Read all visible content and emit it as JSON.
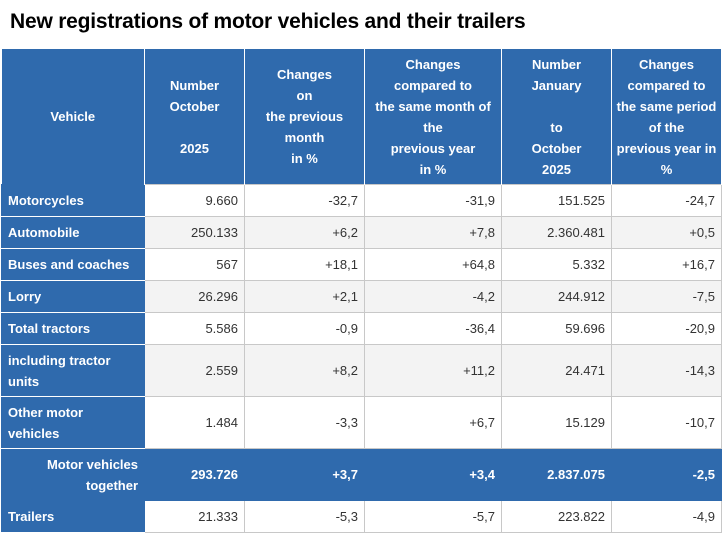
{
  "title": "New registrations of motor vehicles and their trailers",
  "headers": [
    "Vehicle",
    "Number\nOctober\n\n2025",
    "Changes\non\nthe previous\nmonth\nin %",
    "Changes\ncompared to\nthe same month of\nthe\nprevious year\nin %",
    "Number\nJanuary\n\nto\nOctober\n2025",
    "Changes\ncompared to\nthe same period\nof the\nprevious year in\n%"
  ],
  "rows": [
    {
      "label": "Motorcycles",
      "values": [
        "9.660",
        "-32,7",
        "-31,9",
        "151.525",
        "-24,7"
      ]
    },
    {
      "label": "Automobile",
      "values": [
        "250.133",
        "+6,2",
        "+7,8",
        "2.360.481",
        "+0,5"
      ]
    },
    {
      "label": "Buses and coaches",
      "values": [
        "567",
        "+18,1",
        "+64,8",
        "5.332",
        "+16,7"
      ]
    },
    {
      "label": "Lorry",
      "values": [
        "26.296",
        "+2,1",
        "-4,2",
        "244.912",
        "-7,5"
      ]
    },
    {
      "label": "Total tractors",
      "values": [
        "5.586",
        "-0,9",
        "-36,4",
        "59.696",
        "-20,9"
      ]
    },
    {
      "label": "including tractor units",
      "values": [
        "2.559",
        "+8,2",
        "+11,2",
        "24.471",
        "-14,3"
      ]
    },
    {
      "label": "Other motor vehicles",
      "values": [
        "1.484",
        "-3,3",
        "+6,7",
        "15.129",
        "-10,7"
      ]
    },
    {
      "label": "Motor vehicles together",
      "values": [
        "293.726",
        "+3,7",
        "+3,4",
        "2.837.075",
        "-2,5"
      ]
    },
    {
      "label": "Trailers",
      "values": [
        "21.333",
        "-5,3",
        "-5,7",
        "223.822",
        "-4,9"
      ]
    }
  ]
}
